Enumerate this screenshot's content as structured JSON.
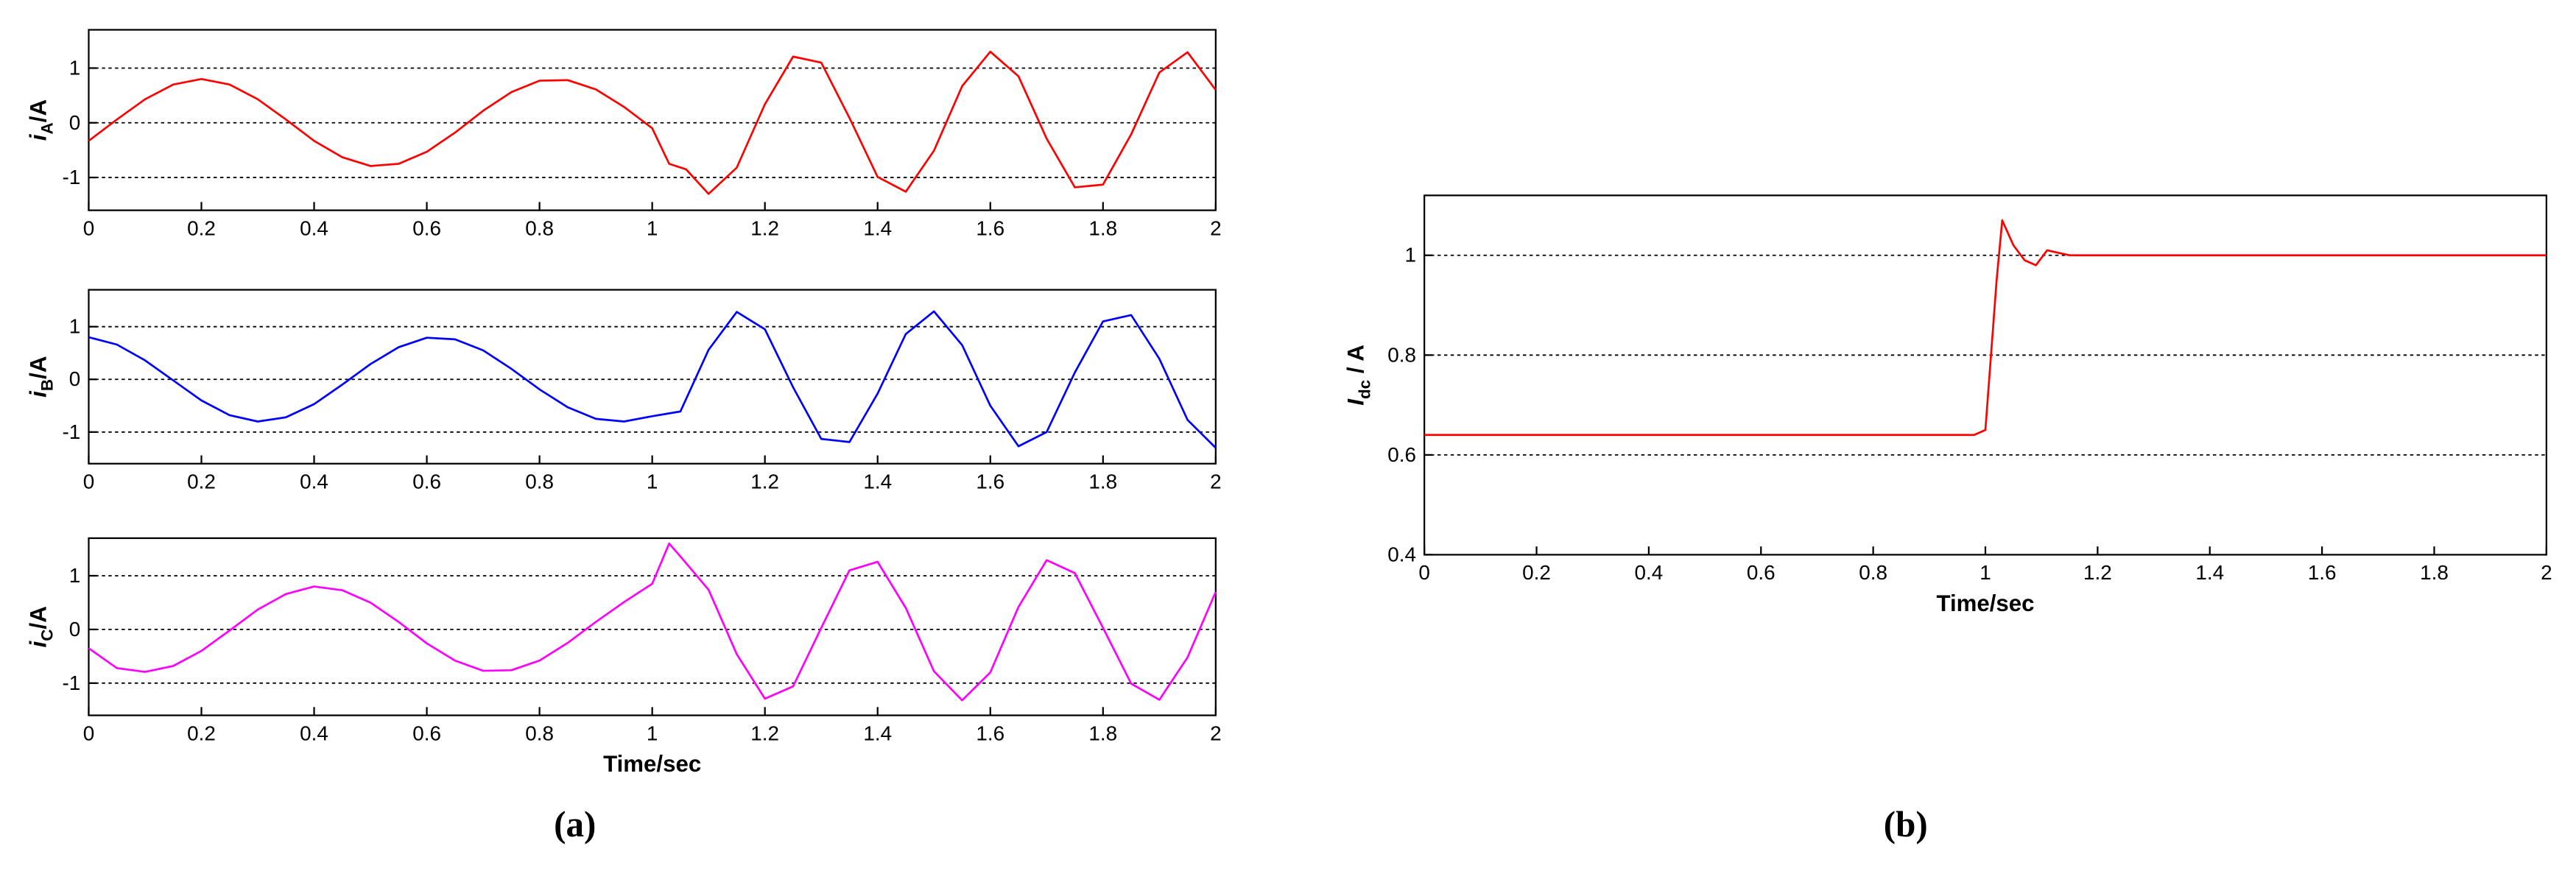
{
  "chart_data": [
    {
      "type": "line",
      "ylabel": [
        "i",
        "A",
        "/A"
      ],
      "x": [
        0,
        0.05,
        0.1,
        0.15,
        0.2,
        0.25,
        0.3,
        0.35,
        0.4,
        0.45,
        0.5,
        0.55,
        0.6,
        0.65,
        0.7,
        0.75,
        0.8,
        0.85,
        0.9,
        0.95,
        1.0,
        1.03,
        1.06,
        1.1,
        1.15,
        1.2,
        1.25,
        1.3,
        1.35,
        1.4,
        1.45,
        1.5,
        1.55,
        1.6,
        1.65,
        1.7,
        1.75,
        1.8,
        1.85,
        1.9,
        1.95,
        2.0
      ],
      "series": [
        {
          "color": "#ff0000",
          "values": [
            -0.33,
            0.06,
            0.43,
            0.7,
            0.8,
            0.7,
            0.43,
            0.06,
            -0.33,
            -0.63,
            -0.79,
            -0.75,
            -0.53,
            -0.18,
            0.22,
            0.56,
            0.77,
            0.78,
            0.61,
            0.29,
            -0.1,
            -0.75,
            -0.85,
            -1.3,
            -0.82,
            0.34,
            1.21,
            1.1,
            0.09,
            -0.99,
            -1.26,
            -0.51,
            0.67,
            1.3,
            0.85,
            -0.29,
            -1.18,
            -1.13,
            -0.21,
            0.92,
            1.29,
            0.6
          ]
        }
      ],
      "xlim": [
        0,
        2
      ],
      "xticks": [
        0,
        0.2,
        0.4,
        0.6,
        0.8,
        1,
        1.2,
        1.4,
        1.6,
        1.8,
        2
      ],
      "ylim": [
        -1.6,
        1.7
      ],
      "yticks": [
        -1,
        0,
        1
      ],
      "grid": true
    },
    {
      "type": "line",
      "ylabel": [
        "i",
        "B",
        "/A"
      ],
      "x": [
        0,
        0.05,
        0.1,
        0.15,
        0.2,
        0.25,
        0.3,
        0.35,
        0.4,
        0.45,
        0.5,
        0.55,
        0.6,
        0.65,
        0.7,
        0.75,
        0.8,
        0.85,
        0.9,
        0.95,
        1.0,
        1.05,
        1.1,
        1.15,
        1.2,
        1.25,
        1.3,
        1.35,
        1.4,
        1.45,
        1.5,
        1.55,
        1.6,
        1.65,
        1.7,
        1.75,
        1.8,
        1.85,
        1.9,
        1.95,
        2.0
      ],
      "series": [
        {
          "color": "#0000ff",
          "values": [
            0.8,
            0.66,
            0.36,
            -0.02,
            -0.4,
            -0.68,
            -0.8,
            -0.72,
            -0.47,
            -0.1,
            0.29,
            0.61,
            0.79,
            0.76,
            0.55,
            0.2,
            -0.19,
            -0.53,
            -0.75,
            -0.8,
            -0.7,
            -0.61,
            0.56,
            1.28,
            0.95,
            -0.15,
            -1.13,
            -1.19,
            -0.27,
            0.86,
            1.29,
            0.65,
            -0.5,
            -1.27,
            -1.0,
            0.13,
            1.1,
            1.22,
            0.39,
            -0.77,
            -1.3
          ]
        }
      ],
      "xlim": [
        0,
        2
      ],
      "xticks": [
        0,
        0.2,
        0.4,
        0.6,
        0.8,
        1,
        1.2,
        1.4,
        1.6,
        1.8,
        2
      ],
      "ylim": [
        -1.6,
        1.7
      ],
      "yticks": [
        -1,
        0,
        1
      ],
      "grid": true
    },
    {
      "type": "line",
      "ylabel": [
        "i",
        "C",
        "/A"
      ],
      "xlabel": "Time/sec",
      "x": [
        0,
        0.05,
        0.1,
        0.15,
        0.2,
        0.25,
        0.3,
        0.35,
        0.4,
        0.45,
        0.5,
        0.55,
        0.6,
        0.65,
        0.7,
        0.75,
        0.8,
        0.85,
        0.9,
        0.95,
        1.0,
        1.03,
        1.05,
        1.1,
        1.15,
        1.2,
        1.25,
        1.3,
        1.35,
        1.4,
        1.45,
        1.5,
        1.55,
        1.6,
        1.65,
        1.7,
        1.75,
        1.8,
        1.85,
        1.9,
        1.95,
        2.0
      ],
      "series": [
        {
          "color": "#ff00ff",
          "values": [
            -0.35,
            -0.72,
            -0.79,
            -0.68,
            -0.4,
            -0.02,
            0.37,
            0.66,
            0.8,
            0.73,
            0.5,
            0.14,
            -0.26,
            -0.58,
            -0.77,
            -0.76,
            -0.58,
            -0.25,
            0.14,
            0.51,
            0.85,
            1.6,
            1.36,
            0.74,
            -0.46,
            -1.29,
            -1.06,
            0.03,
            1.1,
            1.26,
            0.4,
            -0.78,
            -1.32,
            -0.8,
            0.42,
            1.29,
            1.05,
            0.03,
            -1.01,
            -1.31,
            -0.52,
            0.7
          ]
        }
      ],
      "xlim": [
        0,
        2
      ],
      "xticks": [
        0,
        0.2,
        0.4,
        0.6,
        0.8,
        1,
        1.2,
        1.4,
        1.6,
        1.8,
        2
      ],
      "ylim": [
        -1.6,
        1.7
      ],
      "yticks": [
        -1,
        0,
        1
      ],
      "grid": true
    },
    {
      "type": "line",
      "ylabel": [
        "I",
        "dc",
        " / A"
      ],
      "xlabel": "Time/sec",
      "x": [
        0,
        0.1,
        0.2,
        0.3,
        0.4,
        0.5,
        0.6,
        0.7,
        0.8,
        0.9,
        0.98,
        1.0,
        1.02,
        1.03,
        1.05,
        1.07,
        1.09,
        1.11,
        1.15,
        1.3,
        1.5,
        1.7,
        1.9,
        2.0
      ],
      "series": [
        {
          "color": "#ff0000",
          "values": [
            0.64,
            0.64,
            0.64,
            0.64,
            0.64,
            0.64,
            0.64,
            0.64,
            0.64,
            0.64,
            0.64,
            0.65,
            0.95,
            1.07,
            1.02,
            0.99,
            0.98,
            1.01,
            1.0,
            1.0,
            1.0,
            1.0,
            1.0,
            1.0
          ]
        }
      ],
      "xlim": [
        0,
        2
      ],
      "xticks": [
        0,
        0.2,
        0.4,
        0.6,
        0.8,
        1,
        1.2,
        1.4,
        1.6,
        1.8,
        2
      ],
      "ylim": [
        0.4,
        1.12
      ],
      "yticks": [
        0.4,
        0.6,
        0.8,
        1
      ],
      "grid": true
    }
  ],
  "captions": [
    "(a)",
    "(b)"
  ]
}
